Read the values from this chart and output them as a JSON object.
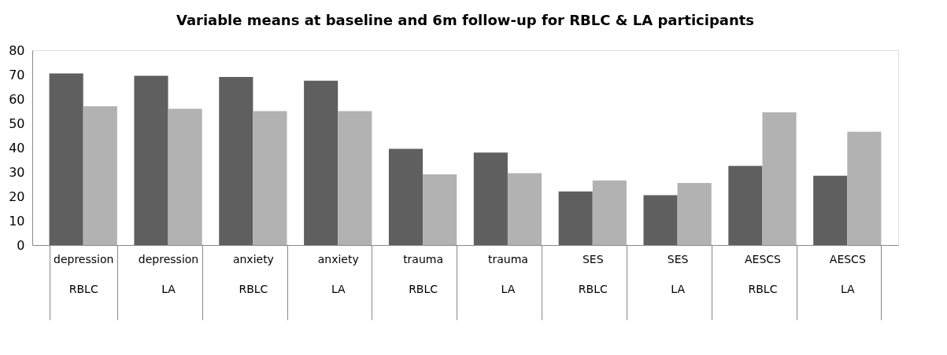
{
  "chart_data": {
    "type": "bar",
    "title": "Variable means at baseline and 6m follow-up for RBLC & LA participants",
    "categories": [
      "depression\nRBLC",
      "depression\nLA",
      "anxiety\nRBLC",
      "anxiety\nLA",
      "trauma\nRBLC",
      "trauma\nLA",
      "SES\nRBLC",
      "SES\nLA",
      "AESCS\nRBLC",
      "AESCS\nLA"
    ],
    "series": [
      {
        "color": "#5f5f5f",
        "values": [
          70.5,
          69.5,
          69,
          67.5,
          39.5,
          38,
          22,
          20.5,
          32.5,
          28.5
        ]
      },
      {
        "color": "#b2b2b2",
        "values": [
          57,
          56,
          55,
          55,
          29,
          29.5,
          26.5,
          25.5,
          54.5,
          46.5
        ]
      }
    ],
    "ylim": [
      0,
      80
    ],
    "yticks": [
      0,
      10,
      20,
      30,
      40,
      50,
      60,
      70,
      80
    ],
    "grid": false,
    "legend": false
  }
}
